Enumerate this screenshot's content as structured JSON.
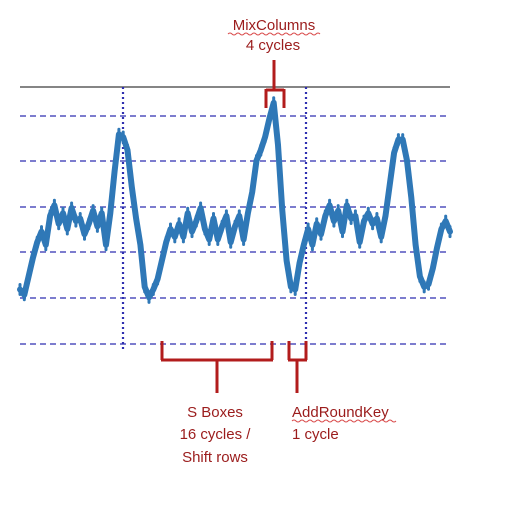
{
  "chart_data": {
    "type": "line",
    "title": "",
    "xlabel": "",
    "ylabel": "",
    "grid": true,
    "legend": "none",
    "ylim": [
      0,
      100
    ],
    "xlim": [
      0,
      100
    ],
    "series": [
      {
        "color": "#2f78b7",
        "x": [
          0,
          1,
          2,
          3,
          4,
          5,
          6,
          7,
          8,
          9,
          10,
          11,
          12,
          13,
          14,
          15,
          16,
          17,
          18,
          19,
          20,
          21,
          22,
          23,
          24,
          25,
          26,
          27,
          28,
          29,
          30,
          31,
          32,
          33,
          34,
          35,
          36,
          37,
          38,
          39,
          40,
          41,
          42,
          43,
          44,
          45,
          46,
          47,
          48,
          49,
          50,
          51,
          52,
          53,
          54,
          55,
          56,
          57,
          58,
          59,
          60,
          61,
          62,
          63,
          64,
          65,
          66,
          67,
          68,
          69,
          70,
          71,
          72,
          73,
          74,
          75,
          76,
          77,
          78,
          79,
          80,
          81,
          82,
          83,
          84,
          85,
          86,
          87,
          88,
          89,
          90,
          91,
          92,
          93,
          94,
          95,
          96,
          97,
          98,
          99,
          100
        ],
        "y": [
          23,
          21,
          28,
          35,
          41,
          45,
          40,
          51,
          55,
          48,
          52,
          46,
          54,
          49,
          50,
          44,
          48,
          53,
          47,
          52,
          40,
          52,
          68,
          82,
          81,
          76,
          62,
          50,
          40,
          24,
          20,
          23,
          27,
          34,
          41,
          46,
          43,
          48,
          43,
          52,
          45,
          49,
          54,
          46,
          42,
          50,
          42,
          47,
          51,
          41,
          47,
          51,
          42,
          52,
          60,
          72,
          76,
          81,
          88,
          94,
          78,
          53,
          34,
          24,
          23,
          33,
          40,
          46,
          40,
          48,
          44,
          51,
          55,
          49,
          53,
          45,
          55,
          50,
          51,
          41,
          49,
          52,
          48,
          50,
          43,
          51,
          63,
          75,
          80,
          80,
          72,
          58,
          40,
          28,
          24,
          25,
          31,
          39,
          46,
          49,
          45
        ]
      }
    ]
  },
  "annotations": {
    "mix_columns": {
      "title": "MixColumns",
      "detail": "4 cycles"
    },
    "s_boxes": {
      "line1": "S Boxes",
      "line2": "16 cycles /",
      "line3": "Shift rows"
    },
    "add_round_key": {
      "title": "AddRoundKey",
      "detail": "1 cycle"
    }
  },
  "colors": {
    "trace": "#2f78b7",
    "grid": "#2f2fb0",
    "top_line": "#5d5d5d",
    "annotation": "#9b1c1c",
    "squiggle": "#d94b4b"
  }
}
